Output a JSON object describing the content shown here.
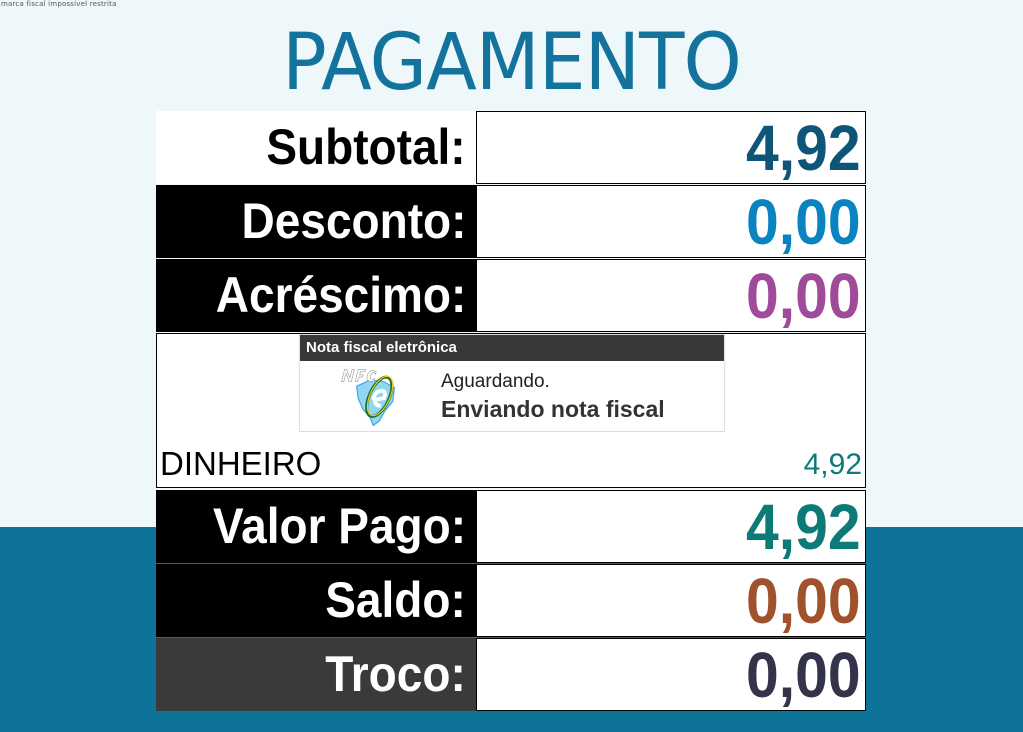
{
  "corner_text": "marca fiscal impossivel restrita",
  "title": "PAGAMENTO",
  "rows": [
    {
      "label": "Subtotal:",
      "value": "4,92",
      "color": "#0e5577"
    },
    {
      "label": "Desconto:",
      "value": "0,00",
      "color": "#0a84c1"
    },
    {
      "label": "Acréscimo:",
      "value": "0,00",
      "color": "#a04a9a"
    }
  ],
  "payments": [
    {
      "method": "DINHEIRO",
      "value": "4,92"
    }
  ],
  "summary": [
    {
      "label": "Valor Pago:",
      "value": "4,92",
      "color": "#0e7a78"
    },
    {
      "label": "Saldo:",
      "value": "0,00",
      "color": "#a0522d"
    },
    {
      "label": "Troco:",
      "value": "0,00",
      "color": "#33334a"
    }
  ],
  "dialog": {
    "title": "Nota fiscal eletrônica",
    "logo": "NFC-e",
    "status": "Aguardando.",
    "message": "Enviando nota fiscal"
  }
}
